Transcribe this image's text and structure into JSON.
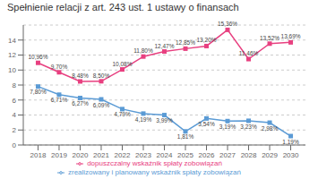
{
  "chart_data": {
    "type": "line",
    "title": "Spełnienie relacji z art. 243 ust. 1 ustawy o finansach",
    "x": [
      2018,
      2019,
      2020,
      2021,
      2022,
      2023,
      2024,
      2025,
      2026,
      2027,
      2028,
      2029,
      2030
    ],
    "xlim": [
      2017.3,
      2030.7
    ],
    "xticks": [
      2018,
      2019,
      2020,
      2021,
      2022,
      2023,
      2024,
      2025,
      2026,
      2027,
      2028,
      2029,
      2030
    ],
    "ylim": [
      0,
      16
    ],
    "yticks": [
      0,
      2,
      4,
      6,
      8,
      10,
      12,
      14
    ],
    "grid": true,
    "legend": "bottom",
    "data_labels": true,
    "series": [
      {
        "name": "zrealizowany i planowany wskaźnik spłaty zobowiązań",
        "color": "#5b9bd5",
        "marker": "square",
        "values": [
          7.8,
          6.71,
          6.27,
          6.09,
          4.79,
          4.19,
          3.99,
          1.81,
          3.54,
          3.19,
          3.23,
          2.98,
          1.19
        ],
        "value_labels": [
          "7,80%",
          "6,71%",
          "6,27%",
          "6,09%",
          "4,79%",
          "4,19%",
          "3,99%",
          "1,81%",
          "3,54%",
          "3,19%",
          "3,23%",
          "2,98%",
          "1,19%"
        ]
      },
      {
        "name": "dopuszczalny wskaźnik spłaty zobowiązań",
        "color": "#e84080",
        "marker": "square",
        "values": [
          10.96,
          9.7,
          8.48,
          8.5,
          10.08,
          11.8,
          12.47,
          12.85,
          13.2,
          15.36,
          11.46,
          13.52,
          13.69
        ],
        "value_labels": [
          "10,96%",
          "9,70%",
          "8,48%",
          "8,50%",
          "10,08%",
          "11,80%",
          "12,47%",
          "12,85%",
          "13,20%",
          "15,36%",
          "11,46%",
          "13,52%",
          "13,69%"
        ]
      }
    ]
  }
}
